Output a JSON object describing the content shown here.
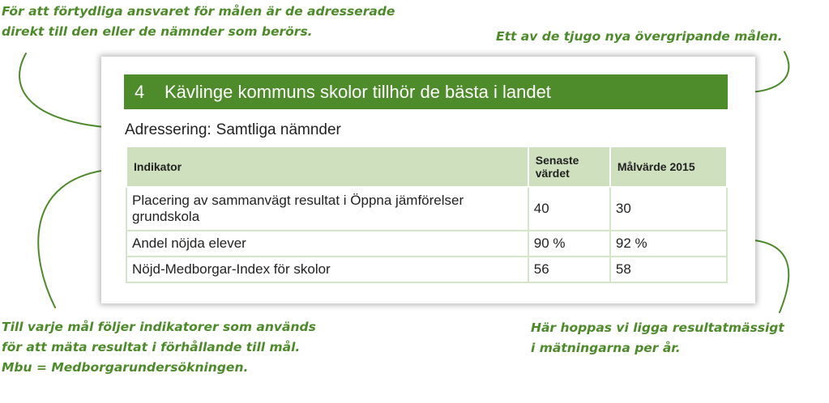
{
  "annotations": {
    "top_left": [
      "För att förtydliga ansvaret för målen är de adresserade",
      "direkt till den eller de nämnder som berörs."
    ],
    "top_right": [
      "Ett av de tjugo nya övergripande målen."
    ],
    "bottom_left": [
      "Till varje mål följer indikatorer som används",
      "för att mäta resultat i förhållande till mål.",
      "Mbu = Medborgarundersökningen."
    ],
    "bottom_right": [
      "Här hoppas vi ligga resultatmässigt",
      "i mätningarna per år."
    ]
  },
  "goal": {
    "number": "4",
    "title": "Kävlinge kommuns skolor tillhör de bästa i landet"
  },
  "addressing": {
    "label": "Adressering:",
    "value": "Samtliga nämnder"
  },
  "table": {
    "headers": [
      "Indikator",
      "Senaste värdet",
      "Målvärde 2015"
    ],
    "rows": [
      [
        "Placering av sammanvägt resultat i Öppna jämförelser grundskola",
        "40",
        "30"
      ],
      [
        "Andel nöjda elever",
        "90 %",
        "92 %"
      ],
      [
        "Nöjd-Medborgar-Index för skolor",
        "56",
        "58"
      ]
    ]
  },
  "colors": {
    "accent_green": "#4e8c2b",
    "header_bg": "#cfe0be",
    "annotation_green": "#4d8a2a"
  }
}
